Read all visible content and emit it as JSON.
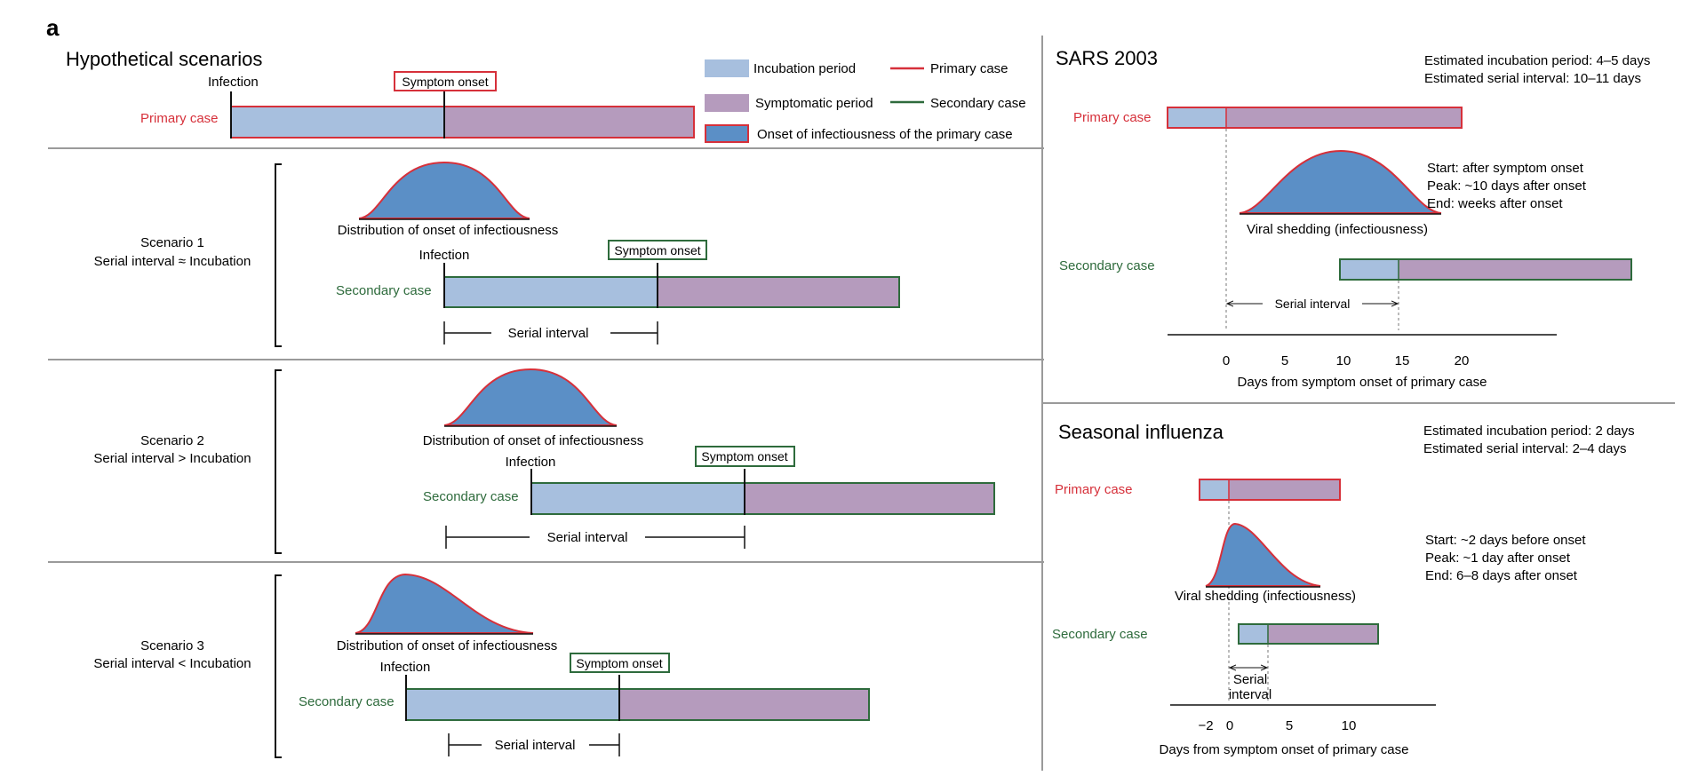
{
  "panel_label": "a",
  "colors": {
    "incubation": "#a7bfde",
    "symptomatic": "#b59bbd",
    "shedding": "#5b8fc6",
    "primary": "#d6303a",
    "secondary": "#2e6b3c",
    "divider": "#9a9a9a"
  },
  "left": {
    "title": "Hypothetical scenarios",
    "infection_label": "Infection",
    "symptom_onset_label": "Symptom onset",
    "primary_case_label": "Primary case",
    "secondary_case_label": "Secondary case",
    "serial_interval_label": "Serial interval",
    "distribution_label": "Distribution of onset of infectiousness",
    "scenarios": [
      {
        "name": "Scenario 1",
        "relation": "Serial interval ≈ Incubation"
      },
      {
        "name": "Scenario 2",
        "relation": "Serial interval > Incubation"
      },
      {
        "name": "Scenario 3",
        "relation": "Serial interval < Incubation"
      }
    ]
  },
  "legend": {
    "incubation": "Incubation period",
    "symptomatic": "Symptomatic period",
    "onset": "Onset of infectiousness of the primary case",
    "primary": "Primary case",
    "secondary": "Secondary case"
  },
  "sars": {
    "title": "SARS 2003",
    "est_incubation": "Estimated incubation period: 4–5 days",
    "est_serial": "Estimated serial interval: 10–11 days",
    "primary_label": "Primary case",
    "secondary_label": "Secondary case",
    "shedding_label": "Viral shedding (infectiousness)",
    "start": "Start: after symptom onset",
    "peak": "Peak: ~10 days after onset",
    "end": "End: weeks after onset",
    "serial_interval_label": "Serial interval",
    "axis_label": "Days from symptom onset of primary case",
    "ticks": [
      "0",
      "5",
      "10",
      "15",
      "20"
    ]
  },
  "flu": {
    "title": "Seasonal influenza",
    "est_incubation": "Estimated incubation period: 2 days",
    "est_serial": "Estimated serial interval: 2–4 days",
    "primary_label": "Primary case",
    "secondary_label": "Secondary case",
    "shedding_label": "Viral shedding (infectiousness)",
    "start": "Start: ~2 days before onset",
    "peak": "Peak: ~1 day after onset",
    "end": "End: 6–8 days after onset",
    "serial_interval_line1": "Serial",
    "serial_interval_line2": "interval",
    "axis_label": "Days from symptom onset of primary case",
    "ticks": [
      "−2",
      "0",
      "5",
      "10"
    ]
  }
}
